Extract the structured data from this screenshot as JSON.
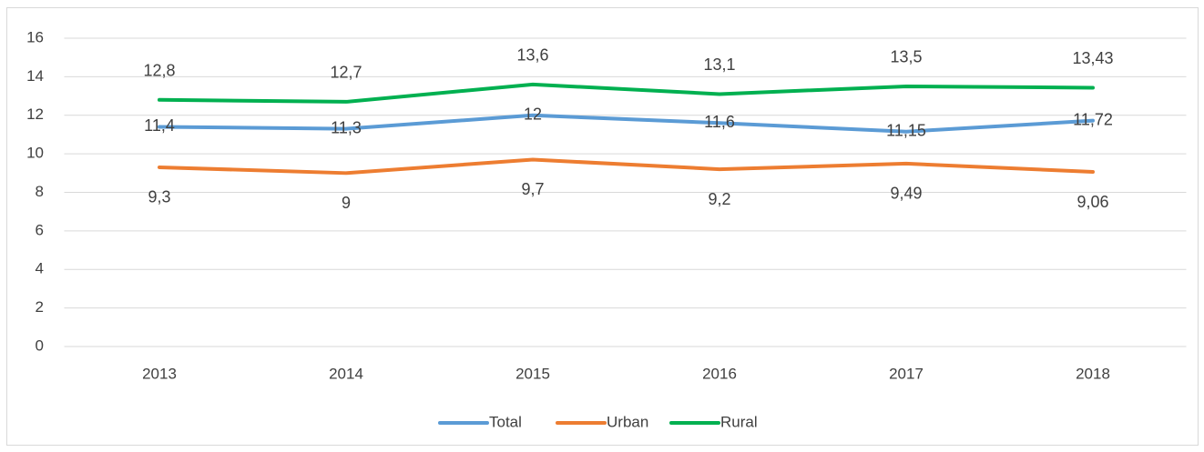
{
  "chart_data": {
    "type": "line",
    "categories": [
      "2013",
      "2014",
      "2015",
      "2016",
      "2017",
      "2018"
    ],
    "series": [
      {
        "name": "Total",
        "color": "#5b9bd5",
        "values": [
          11.4,
          11.3,
          12,
          11.6,
          11.15,
          11.72
        ],
        "value_labels": [
          "11,4",
          "11,3",
          "12",
          "11,6",
          "11,15",
          "11,72"
        ]
      },
      {
        "name": "Urban",
        "color": "#ed7d31",
        "values": [
          9.3,
          9,
          9.7,
          9.2,
          9.49,
          9.06
        ],
        "value_labels": [
          "9,3",
          "9",
          "9,7",
          "9,2",
          "9,49",
          "9,06"
        ]
      },
      {
        "name": "Rural",
        "color": "#00b050",
        "values": [
          12.8,
          12.7,
          13.6,
          13.1,
          13.5,
          13.43
        ],
        "value_labels": [
          "12,8",
          "12,7",
          "13,6",
          "13,1",
          "13,5",
          "13,43"
        ]
      }
    ],
    "ylim": [
      0,
      16
    ],
    "yticks": [
      0,
      2,
      4,
      6,
      8,
      10,
      12,
      14,
      16
    ],
    "grid": true,
    "legend": "bottom"
  }
}
